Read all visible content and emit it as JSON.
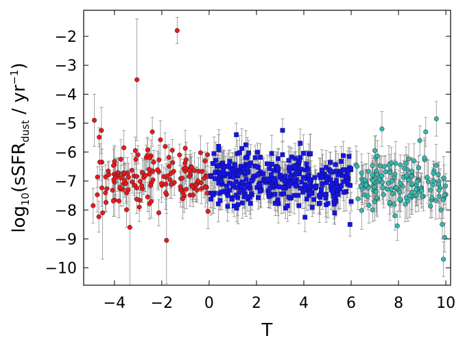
{
  "chart_data": {
    "type": "scatter",
    "xlabel": "T",
    "ylabel": {
      "prefix": "log",
      "sub": "10",
      "mid": "(sSFR",
      "sub2": "dust",
      "mid2": " / yr",
      "sup": "−1",
      "suffix": ")"
    },
    "xlim": [
      -5.3,
      10.2
    ],
    "ylim": [
      -10.6,
      -1.1
    ],
    "xticks": [
      -4,
      -2,
      0,
      2,
      4,
      6,
      8,
      10
    ],
    "xtick_labels": [
      "−4",
      "−2",
      "0",
      "2",
      "4",
      "6",
      "8",
      "10"
    ],
    "yticks": [
      -10,
      -9,
      -8,
      -7,
      -6,
      -5,
      -4,
      -3,
      -2
    ],
    "ytick_labels": [
      "−10",
      "−9",
      "−8",
      "−7",
      "−6",
      "−5",
      "−4",
      "−3",
      "−2"
    ],
    "grid": false,
    "legend": "none",
    "series": [
      {
        "marker": "circle",
        "color": "#e8191d",
        "x_range": [
          -5.0,
          -0.05
        ],
        "y_center": -6.9,
        "y_spread": 0.55,
        "n": 150,
        "seed": 11,
        "err": 0.5,
        "extra_points": [
          {
            "x": -1.35,
            "y": -1.8,
            "err": 0.45
          },
          {
            "x": -3.05,
            "y": -3.5,
            "err": 2.1
          },
          {
            "x": -4.85,
            "y": -4.9,
            "err": 0.9
          },
          {
            "x": -4.55,
            "y": -5.25,
            "err": 0.8
          },
          {
            "x": -3.35,
            "y": -8.6,
            "err": 2.0
          },
          {
            "x": -1.8,
            "y": -9.05,
            "err": 1.5
          },
          {
            "x": -4.5,
            "y": -8.1,
            "err": 1.6
          },
          {
            "x": -0.05,
            "y": -8.05,
            "err": 0.6
          },
          {
            "x": -4.9,
            "y": -7.85,
            "err": 0.6
          },
          {
            "x": -2.4,
            "y": -5.3,
            "err": 0.5
          },
          {
            "x": -2.95,
            "y": -7.9,
            "err": 0.5
          }
        ]
      },
      {
        "marker": "square",
        "color": "#1616e0",
        "x_range": [
          0.05,
          6.0
        ],
        "y_center": -6.95,
        "y_spread": 0.5,
        "n": 380,
        "seed": 27,
        "err": 0.5,
        "extra_points": [
          {
            "x": 3.1,
            "y": -5.25,
            "err": 0.4
          },
          {
            "x": 1.15,
            "y": -5.4,
            "err": 0.4
          },
          {
            "x": 5.95,
            "y": -8.5,
            "err": 0.4
          },
          {
            "x": 4.05,
            "y": -8.25,
            "err": 0.5
          },
          {
            "x": 3.85,
            "y": -5.7,
            "err": 0.5
          },
          {
            "x": 5.3,
            "y": -8.1,
            "err": 0.4
          },
          {
            "x": 0.4,
            "y": -5.8,
            "err": 0.4
          }
        ]
      },
      {
        "marker": "circle",
        "color": "#35b7ad",
        "x_range": [
          6.1,
          10.0
        ],
        "y_center": -7.05,
        "y_spread": 0.45,
        "n": 140,
        "seed": 53,
        "err": 0.55,
        "extra_points": [
          {
            "x": 9.6,
            "y": -4.85,
            "err": 0.6
          },
          {
            "x": 7.3,
            "y": -5.2,
            "err": 0.6
          },
          {
            "x": 9.15,
            "y": -5.3,
            "err": 0.5
          },
          {
            "x": 9.9,
            "y": -9.7,
            "err": 0.6
          },
          {
            "x": 9.95,
            "y": -8.95,
            "err": 0.5
          },
          {
            "x": 7.95,
            "y": -8.55,
            "err": 0.5
          },
          {
            "x": 9.8,
            "y": -8.0,
            "err": 0.5
          },
          {
            "x": 9.85,
            "y": -8.5,
            "err": 0.5
          },
          {
            "x": 7.0,
            "y": -5.95,
            "err": 0.5
          },
          {
            "x": 7.85,
            "y": -8.2,
            "err": 0.5
          },
          {
            "x": 8.9,
            "y": -5.6,
            "err": 0.5
          }
        ]
      }
    ]
  }
}
